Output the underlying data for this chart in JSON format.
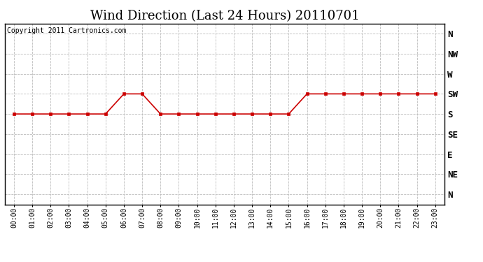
{
  "title": "Wind Direction (Last 24 Hours) 20110701",
  "copyright_text": "Copyright 2011 Cartronics.com",
  "x_labels": [
    "00:00",
    "01:00",
    "02:00",
    "03:00",
    "04:00",
    "05:00",
    "06:00",
    "07:00",
    "08:00",
    "09:00",
    "10:00",
    "11:00",
    "12:00",
    "13:00",
    "14:00",
    "15:00",
    "16:00",
    "17:00",
    "18:00",
    "19:00",
    "20:00",
    "21:00",
    "22:00",
    "23:00"
  ],
  "y_labels": [
    "N",
    "NE",
    "E",
    "SE",
    "S",
    "SW",
    "W",
    "NW",
    "N"
  ],
  "y_values": [
    0,
    1,
    2,
    3,
    4,
    5,
    6,
    7,
    8
  ],
  "wind_data": {
    "hours": [
      0,
      1,
      2,
      3,
      4,
      5,
      6,
      7,
      8,
      9,
      10,
      11,
      12,
      13,
      14,
      15,
      16,
      17,
      18,
      19,
      20,
      21,
      22,
      23
    ],
    "directions": [
      4,
      4,
      4,
      4,
      4,
      4,
      5,
      5,
      4,
      4,
      4,
      4,
      4,
      4,
      4,
      4,
      5,
      5,
      5,
      5,
      5,
      5,
      5,
      5
    ]
  },
  "line_color": "#cc0000",
  "marker_color": "#cc0000",
  "grid_color": "#bbbbbb",
  "bg_color": "#ffffff",
  "plot_bg_color": "#ffffff",
  "title_fontsize": 13,
  "copyright_fontsize": 7,
  "tick_fontsize": 7,
  "ylabel_fontsize": 9
}
